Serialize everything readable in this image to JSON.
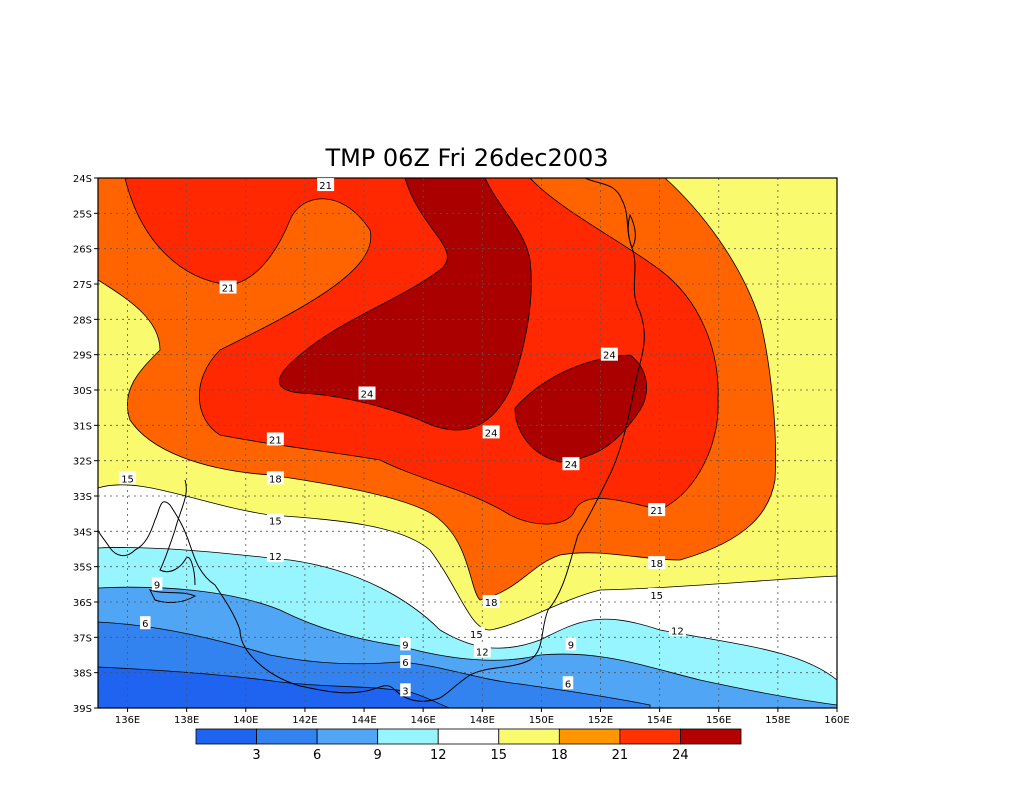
{
  "chart_data": {
    "type": "heatmap",
    "title": "TMP 06Z Fri 26dec2003",
    "x_ticks": [
      "136E",
      "138E",
      "140E",
      "142E",
      "144E",
      "146E",
      "148E",
      "150E",
      "152E",
      "154E",
      "156E",
      "158E",
      "160E"
    ],
    "y_ticks": [
      "24S",
      "25S",
      "26S",
      "27S",
      "28S",
      "29S",
      "30S",
      "31S",
      "32S",
      "33S",
      "34S",
      "35S",
      "36S",
      "37S",
      "38S",
      "39S"
    ],
    "xlim": [
      135,
      160
    ],
    "ylim": [
      -39,
      -24
    ],
    "grid": true,
    "colorbar": {
      "colors": [
        "#1e64f0",
        "#3282f0",
        "#50a5f5",
        "#96f5ff",
        "#ffffff",
        "#fafa6e",
        "#ff9600",
        "#ff3200",
        "#b40000"
      ],
      "labels": [
        "3",
        "6",
        "9",
        "12",
        "15",
        "18",
        "21",
        "24"
      ]
    },
    "contour_labels": [
      {
        "text": "21",
        "lon": 142.7,
        "lat": -24.2
      },
      {
        "text": "21",
        "lon": 139.4,
        "lat": -27.1
      },
      {
        "text": "24",
        "lon": 144.1,
        "lat": -30.1
      },
      {
        "text": "24",
        "lon": 148.3,
        "lat": -31.2
      },
      {
        "text": "24",
        "lon": 152.3,
        "lat": -29.0
      },
      {
        "text": "24",
        "lon": 151.0,
        "lat": -32.1
      },
      {
        "text": "21",
        "lon": 141.0,
        "lat": -31.4
      },
      {
        "text": "21",
        "lon": 153.9,
        "lat": -33.4
      },
      {
        "text": "18",
        "lon": 141.0,
        "lat": -32.5
      },
      {
        "text": "18",
        "lon": 148.3,
        "lat": -36.0
      },
      {
        "text": "18",
        "lon": 153.9,
        "lat": -34.9
      },
      {
        "text": "15",
        "lon": 136.0,
        "lat": -32.5
      },
      {
        "text": "15",
        "lon": 141.0,
        "lat": -33.7
      },
      {
        "text": "15",
        "lon": 147.8,
        "lat": -36.9
      },
      {
        "text": "15",
        "lon": 153.9,
        "lat": -35.8
      },
      {
        "text": "12",
        "lon": 141.0,
        "lat": -34.7
      },
      {
        "text": "12",
        "lon": 148.0,
        "lat": -37.4
      },
      {
        "text": "12",
        "lon": 154.6,
        "lat": -36.8
      },
      {
        "text": "9",
        "lon": 137.0,
        "lat": -35.5
      },
      {
        "text": "9",
        "lon": 145.4,
        "lat": -37.2
      },
      {
        "text": "9",
        "lon": 151.0,
        "lat": -37.2
      },
      {
        "text": "6",
        "lon": 136.6,
        "lat": -36.6
      },
      {
        "text": "6",
        "lon": 145.4,
        "lat": -37.7
      },
      {
        "text": "6",
        "lon": 150.9,
        "lat": -38.3
      },
      {
        "text": "3",
        "lon": 145.4,
        "lat": -38.5
      }
    ]
  }
}
